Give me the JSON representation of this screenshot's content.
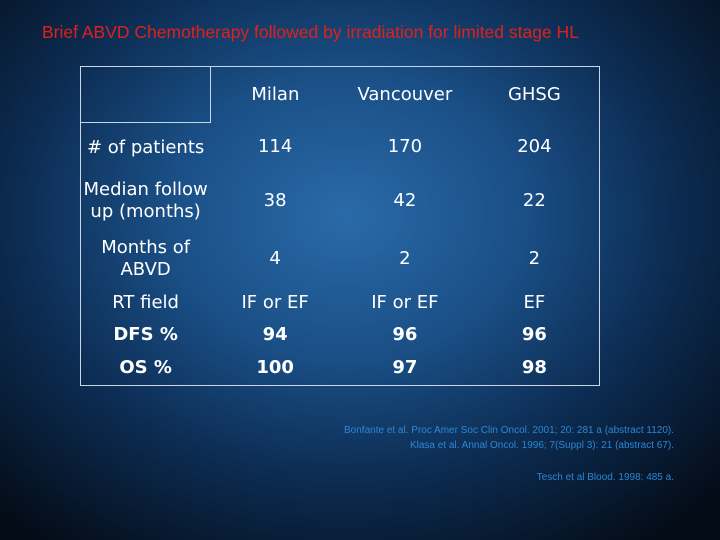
{
  "slide": {
    "title": "Brief ABVD Chemotherapy followed by irradiation for limited stage HL"
  },
  "table": {
    "columns": [
      "",
      "Milan",
      "Vancouver",
      "GHSG"
    ],
    "rows": [
      {
        "label": "# of patients",
        "values": [
          "114",
          "170",
          "204"
        ]
      },
      {
        "label": "Median follow up (months)",
        "values": [
          "38",
          "42",
          "22"
        ]
      },
      {
        "label": "Months of ABVD",
        "values": [
          "4",
          "2",
          "2"
        ]
      },
      {
        "label": "RT field",
        "values": [
          "IF or EF",
          "IF or EF",
          "EF"
        ]
      },
      {
        "label": "DFS %",
        "values": [
          "94",
          "96",
          "96"
        ]
      },
      {
        "label": "OS %",
        "values": [
          "100",
          "97",
          "98"
        ]
      }
    ]
  },
  "references": [
    "Bonfante et al. Proc Amer Soc Clin Oncol. 2001; 20: 281 a (abstract 1120).",
    "Klasa et al. Annal Oncol. 1996; 7(Suppl 3): 21 (abstract 67).",
    "Tesch et al Blood. 1998: 485 a."
  ],
  "colors": {
    "title": "#e0201c",
    "text": "#ffffff",
    "references": "#2b87d6",
    "background_center": "#2a6aa8",
    "background_edge": "#040c18"
  }
}
